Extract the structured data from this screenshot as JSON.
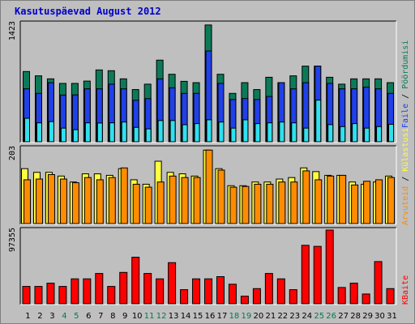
{
  "title": "Kasutuspäevad August 2012",
  "colors": {
    "background": "#bfbfbf",
    "title": "#0000c8",
    "hits": "#0c7a58",
    "files": "#2040e8",
    "pages": "#30e0f0",
    "visits": "#ffff40",
    "sites": "#ff8c00",
    "kbytes": "#ff0000",
    "weekend": "#007a4a",
    "weekday": "#000000"
  },
  "chart_data": [
    {
      "type": "bar",
      "categories": [
        "1",
        "2",
        "3",
        "4",
        "5",
        "6",
        "7",
        "8",
        "9",
        "10",
        "11",
        "12",
        "13",
        "14",
        "15",
        "16",
        "17",
        "18",
        "19",
        "20",
        "21",
        "22",
        "23",
        "24",
        "25",
        "26",
        "27",
        "28",
        "29",
        "30",
        "31"
      ],
      "weekend_days": [
        "4",
        "5",
        "11",
        "12",
        "18",
        "19",
        "25",
        "26"
      ],
      "ymax_label": "1423",
      "ylim": [
        0,
        1423
      ],
      "series_labels": [
        "Pöördumisi",
        "Faile",
        "Lehekülgi"
      ],
      "series": [
        {
          "name": "Pöördumisi",
          "values": [
            845,
            793,
            757,
            702,
            702,
            730,
            864,
            855,
            757,
            628,
            693,
            982,
            812,
            727,
            711,
            1405,
            812,
            582,
            711,
            628,
            776,
            711,
            793,
            910,
            910,
            776,
            693,
            757,
            757,
            757,
            711
          ]
        },
        {
          "name": "Faile",
          "values": [
            637,
            582,
            711,
            562,
            564,
            637,
            637,
            693,
            637,
            499,
            519,
            757,
            649,
            582,
            582,
            1092,
            702,
            508,
            520,
            508,
            545,
            711,
            637,
            711,
            910,
            702,
            637,
            637,
            657,
            637,
            582
          ]
        },
        {
          "name": "Lehekülgi",
          "values": [
            282,
            227,
            242,
            164,
            145,
            227,
            225,
            227,
            237,
            173,
            155,
            255,
            255,
            205,
            218,
            264,
            237,
            164,
            264,
            218,
            227,
            237,
            227,
            164,
            501,
            206,
            182,
            218,
            164,
            182,
            210
          ]
        }
      ]
    },
    {
      "type": "bar",
      "categories": [
        "1",
        "2",
        "3",
        "4",
        "5",
        "6",
        "7",
        "8",
        "9",
        "10",
        "11",
        "12",
        "13",
        "14",
        "15",
        "16",
        "17",
        "18",
        "19",
        "20",
        "21",
        "22",
        "23",
        "24",
        "25",
        "26",
        "27",
        "28",
        "29",
        "30",
        "31"
      ],
      "ymax_label": "203",
      "ylim": [
        0,
        203
      ],
      "series_labels": [
        "Külastusi",
        "Arvuteid"
      ],
      "series": [
        {
          "name": "Külastusi",
          "values": [
            148,
            138,
            138,
            128,
            112,
            134,
            134,
            130,
            148,
            118,
            106,
            168,
            138,
            134,
            128,
            198,
            148,
            102,
            102,
            112,
            112,
            120,
            124,
            150,
            140,
            130,
            130,
            112,
            106,
            112,
            128
          ]
        },
        {
          "name": "Arvuteid",
          "values": [
            118,
            120,
            132,
            120,
            110,
            124,
            118,
            124,
            150,
            106,
            98,
            112,
            128,
            124,
            124,
            198,
            144,
            98,
            100,
            106,
            106,
            112,
            112,
            142,
            118,
            128,
            130,
            104,
            114,
            118,
            124
          ]
        }
      ]
    },
    {
      "type": "bar",
      "categories": [
        "1",
        "2",
        "3",
        "4",
        "5",
        "6",
        "7",
        "8",
        "9",
        "10",
        "11",
        "12",
        "13",
        "14",
        "15",
        "16",
        "17",
        "18",
        "19",
        "20",
        "21",
        "22",
        "23",
        "24",
        "25",
        "26",
        "27",
        "28",
        "29",
        "30",
        "31"
      ],
      "ymax_label": "97355",
      "ylim": [
        0,
        97355
      ],
      "series_labels": [
        "KBaite"
      ],
      "series": [
        {
          "name": "KBaite",
          "values": [
            22900,
            22900,
            27200,
            22900,
            32900,
            32900,
            40000,
            22900,
            41400,
            61500,
            40000,
            32900,
            54300,
            18600,
            32900,
            32900,
            35800,
            25800,
            10000,
            20000,
            40000,
            32900,
            18600,
            77200,
            75800,
            97355,
            21500,
            27200,
            12900,
            55700,
            20000
          ]
        }
      ]
    }
  ]
}
